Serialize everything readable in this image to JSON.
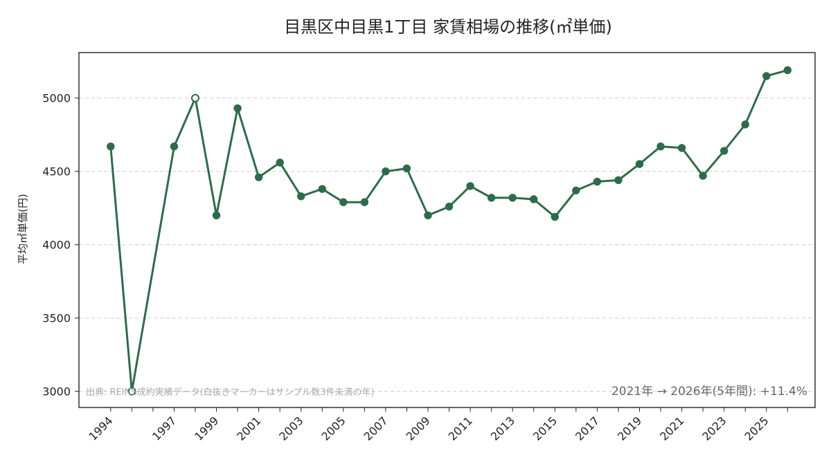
{
  "chart_data": {
    "type": "line",
    "title": "目黒区中目黒1丁目 家賃相場の推移(㎡単価)",
    "xlabel": "",
    "ylabel": "平均㎡単価(円)",
    "x": [
      1994,
      1995,
      1997,
      1998,
      1999,
      2000,
      2001,
      2002,
      2003,
      2004,
      2005,
      2006,
      2007,
      2008,
      2009,
      2010,
      2011,
      2012,
      2013,
      2014,
      2015,
      2016,
      2017,
      2018,
      2019,
      2020,
      2021,
      2022,
      2023,
      2024,
      2025,
      2026
    ],
    "series": [
      {
        "values": [
          4670,
          3000,
          4670,
          5000,
          4200,
          4930,
          4460,
          4560,
          4330,
          4380,
          4290,
          4290,
          4500,
          4520,
          4200,
          4260,
          4400,
          4320,
          4320,
          4310,
          4190,
          4370,
          4430,
          4440,
          4550,
          4670,
          4660,
          4470,
          4640,
          4820,
          5150,
          5190
        ],
        "hollow": [
          false,
          true,
          false,
          true,
          false,
          false,
          false,
          false,
          false,
          false,
          false,
          false,
          false,
          false,
          false,
          false,
          false,
          false,
          false,
          false,
          false,
          false,
          false,
          false,
          false,
          false,
          false,
          false,
          false,
          false,
          false,
          false
        ],
        "color": "#2e6b4a"
      }
    ],
    "xticks": [
      "1994",
      "1997",
      "1999",
      "2001",
      "2003",
      "2005",
      "2007",
      "2009",
      "2011",
      "2013",
      "2015",
      "2017",
      "2019",
      "2021",
      "2023",
      "2025"
    ],
    "yticks": [
      3000,
      3500,
      4000,
      4500,
      5000
    ],
    "ylim": [
      2890,
      5310
    ],
    "grid": "y-dashed",
    "source_note": "出典: REINS成約実績データ(白抜きマーカーはサンプル数3件未満の年)",
    "summary_note": "2021年 → 2026年(5年間): +11.4%"
  }
}
